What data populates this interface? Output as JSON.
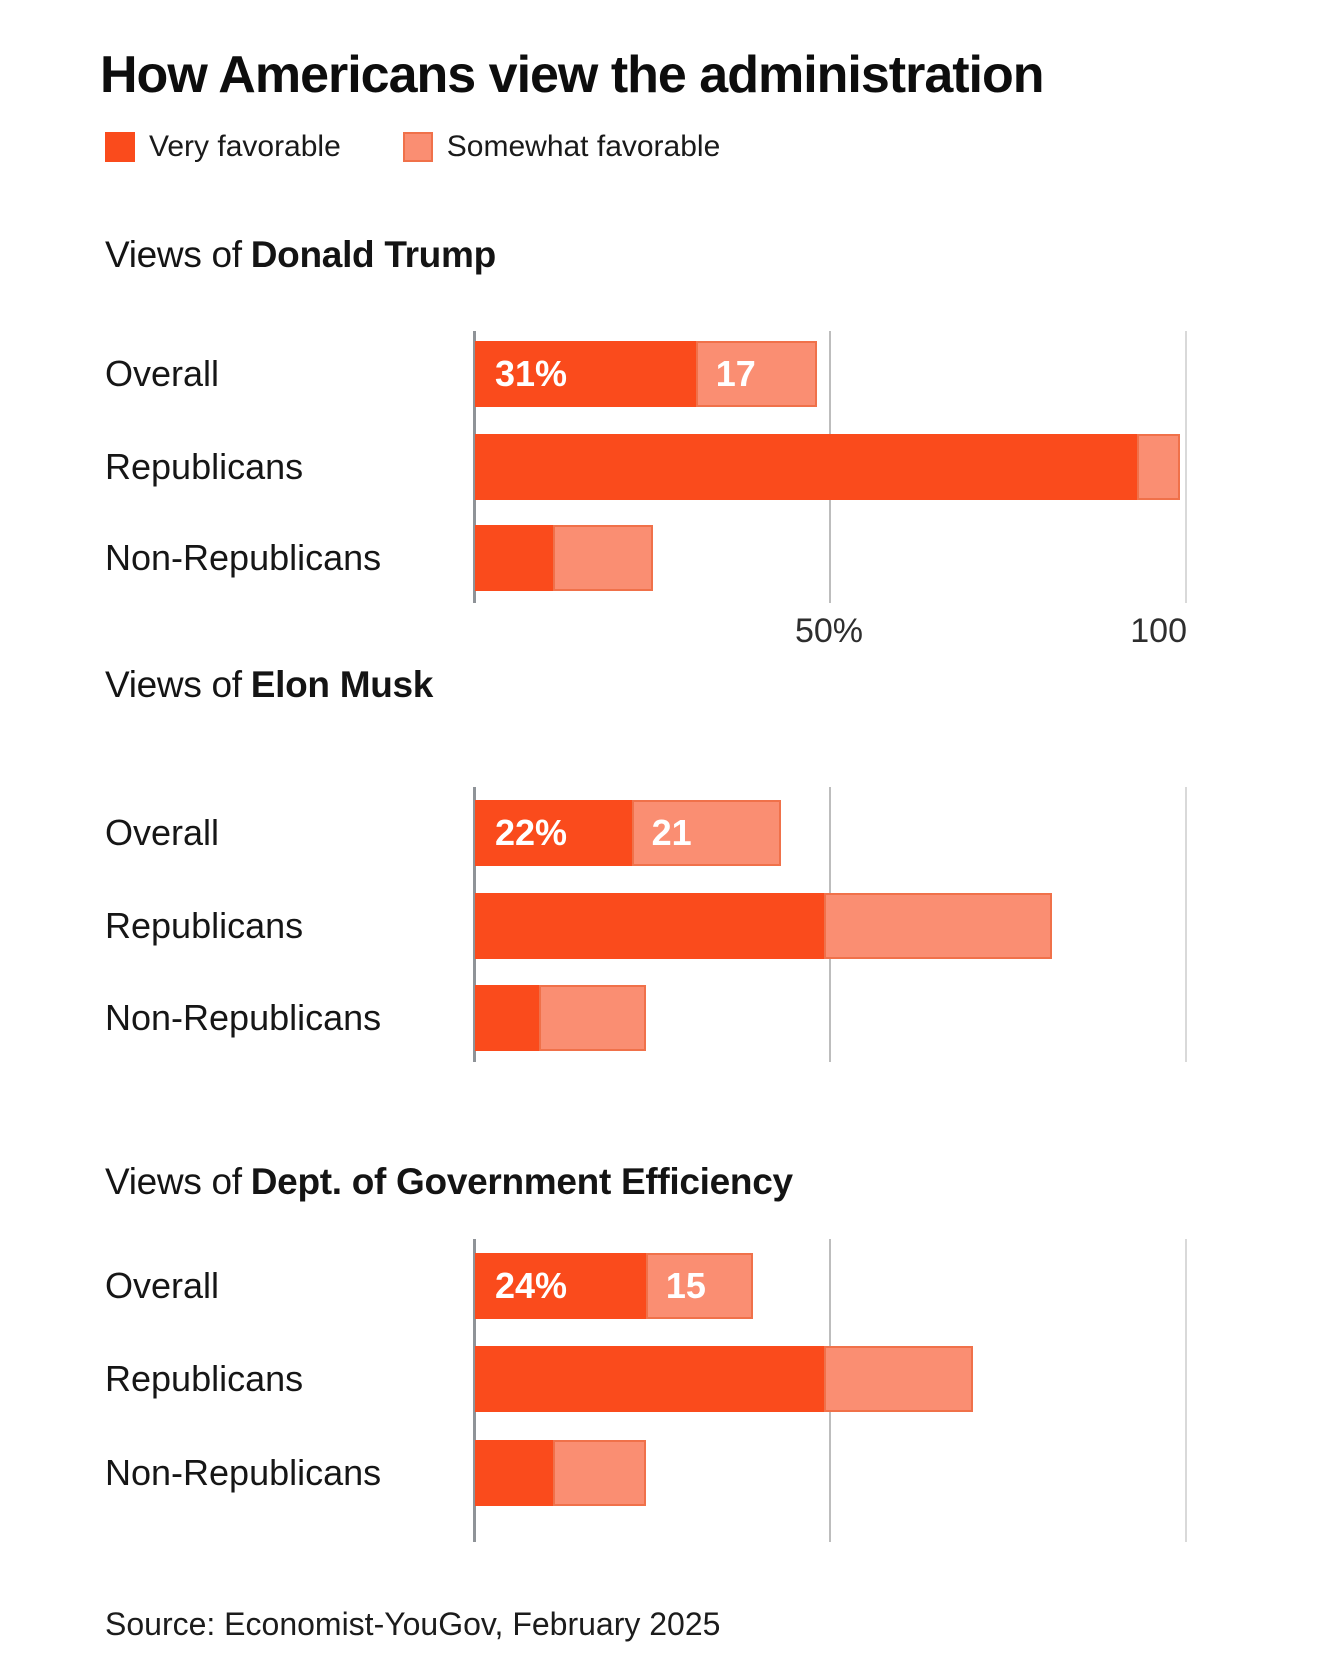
{
  "title": "How Americans view the administration",
  "legend": [
    {
      "label": "Very favorable",
      "swatch": "very-favorable-swatch"
    },
    {
      "label": "Somewhat favorable",
      "swatch": "somewhat-favorable-swatch"
    }
  ],
  "colors": {
    "very_favorable": "#fa4b1c",
    "somewhat_favorable": "#fa8e72",
    "somewhat_border": "#f0714a",
    "axis_zero": "#8f9398",
    "gridline_50": "#bdbdbd",
    "gridline_100": "#d9d9d9"
  },
  "source": "Source: Economist-YouGov, February 2025",
  "chart_data": [
    {
      "type": "bar",
      "orientation": "horizontal",
      "stacked": true,
      "title_prefix": "Views of",
      "subject": "Donald Trump",
      "categories": [
        "Overall",
        "Republicans",
        "Non-Republicans"
      ],
      "series": [
        {
          "name": "Very favorable",
          "values": [
            31,
            93,
            11
          ]
        },
        {
          "name": "Somewhat favorable",
          "values": [
            17,
            6,
            14
          ]
        }
      ],
      "xlim": [
        0,
        100
      ],
      "gridline_values": [
        0,
        50,
        100
      ],
      "x_tick_labels": [
        {
          "value": 50,
          "label": "50%"
        },
        {
          "value": 100,
          "label": "100"
        }
      ],
      "bar_value_labels": [
        [
          "31%",
          "17"
        ],
        null,
        null
      ]
    },
    {
      "type": "bar",
      "orientation": "horizontal",
      "stacked": true,
      "title_prefix": "Views of",
      "subject": "Elon Musk",
      "categories": [
        "Overall",
        "Republicans",
        "Non-Republicans"
      ],
      "series": [
        {
          "name": "Very favorable",
          "values": [
            22,
            49,
            9
          ]
        },
        {
          "name": "Somewhat favorable",
          "values": [
            21,
            32,
            15
          ]
        }
      ],
      "xlim": [
        0,
        100
      ],
      "gridline_values": [
        0,
        50,
        100
      ],
      "x_tick_labels": [],
      "bar_value_labels": [
        [
          "22%",
          "21"
        ],
        null,
        null
      ]
    },
    {
      "type": "bar",
      "orientation": "horizontal",
      "stacked": true,
      "title_prefix": "Views of",
      "subject": "Dept. of Government Efficiency",
      "categories": [
        "Overall",
        "Republicans",
        "Non-Republicans"
      ],
      "series": [
        {
          "name": "Very favorable",
          "values": [
            24,
            49,
            11
          ]
        },
        {
          "name": "Somewhat favorable",
          "values": [
            15,
            21,
            13
          ]
        }
      ],
      "xlim": [
        0,
        100
      ],
      "gridline_values": [
        0,
        50,
        100
      ],
      "x_tick_labels": [],
      "bar_value_labels": [
        [
          "24%",
          "15"
        ],
        null,
        null
      ]
    }
  ]
}
